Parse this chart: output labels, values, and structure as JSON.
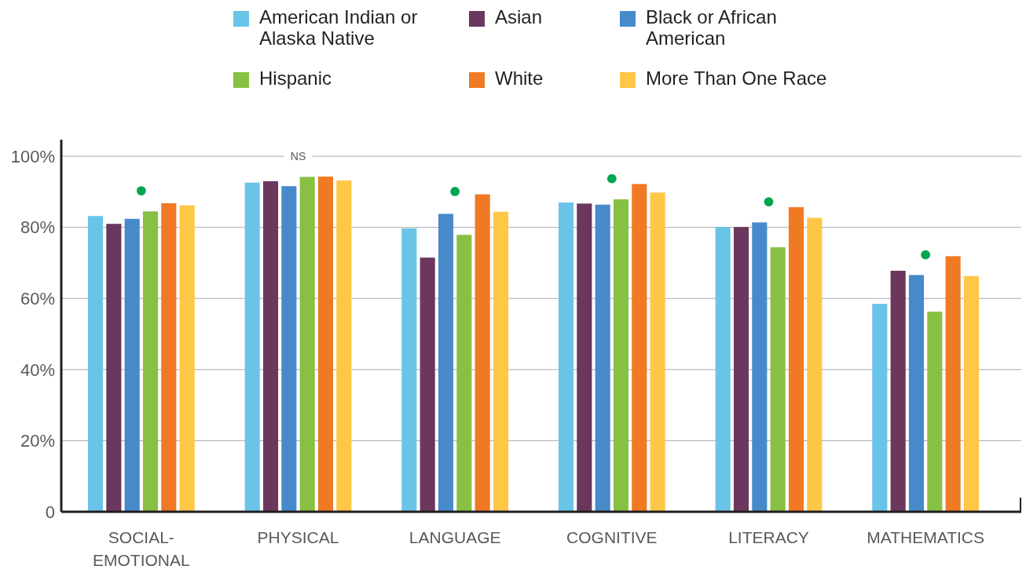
{
  "chart_data": {
    "type": "bar",
    "categories": [
      "SOCIAL-EMOTIONAL",
      "PHYSICAL",
      "LANGUAGE",
      "COGNITIVE",
      "LITERACY",
      "MATHEMATICS"
    ],
    "series": [
      {
        "name": "American Indian or Alaska Native",
        "color": "#6ac4e8",
        "values": [
          83.2,
          92.6,
          79.7,
          87.0,
          80.1,
          58.5
        ]
      },
      {
        "name": "Asian",
        "color": "#6c375c",
        "values": [
          81.0,
          93.0,
          71.5,
          86.7,
          80.1,
          67.8
        ]
      },
      {
        "name": "Black or African American",
        "color": "#488ac9",
        "values": [
          82.4,
          91.6,
          83.8,
          86.4,
          81.4,
          66.6
        ]
      },
      {
        "name": "Hispanic",
        "color": "#88c043",
        "values": [
          84.5,
          94.2,
          77.9,
          87.9,
          74.4,
          56.3
        ]
      },
      {
        "name": "White",
        "color": "#f07923",
        "values": [
          86.8,
          94.3,
          89.3,
          92.2,
          85.7,
          71.9
        ]
      },
      {
        "name": "More Than One Race",
        "color": "#fec746",
        "values": [
          86.2,
          93.2,
          84.4,
          89.8,
          82.7,
          66.3
        ]
      },
      {
        "type": "scatter",
        "color": "#00a651",
        "x": [
          "SOCIAL-EMOTIONAL",
          "LANGUAGE",
          "COGNITIVE",
          "LITERACY",
          "MATHEMATICS"
        ],
        "values": [
          90.3,
          90.1,
          93.7,
          87.2,
          72.3
        ]
      }
    ],
    "ylim": [
      0,
      104
    ],
    "yticks": [
      {
        "value": 0,
        "label": "0"
      },
      {
        "value": 20,
        "label": "20%"
      },
      {
        "value": 40,
        "label": "40%"
      },
      {
        "value": 60,
        "label": "60%"
      },
      {
        "value": 80,
        "label": "80%"
      },
      {
        "value": 100,
        "label": "100%"
      }
    ],
    "grid": "y",
    "legend": "top",
    "marker": "circle",
    "annotations": [
      {
        "text": "NS",
        "x": "PHYSICAL",
        "y": 100
      }
    ]
  }
}
